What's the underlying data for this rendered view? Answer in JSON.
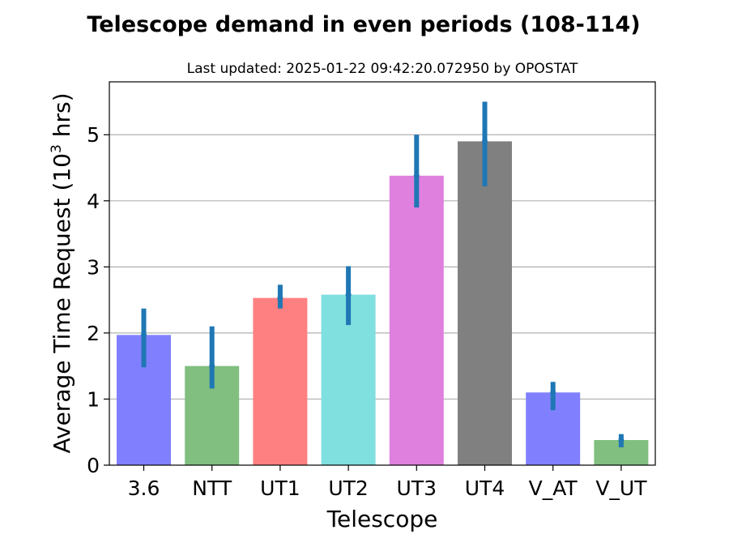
{
  "chart_data": {
    "type": "bar",
    "title": "Telescope demand in even periods (108-114)",
    "subtitle": "Last updated: 2025-01-22 09:42:20.072950 by OPOSTAT",
    "xlabel": "Telescope",
    "ylabel_main": "Average Time Request (10",
    "ylabel_sup": "3",
    "ylabel_end": " hrs)",
    "categories": [
      "3.6",
      "NTT",
      "UT1",
      "UT2",
      "UT3",
      "UT4",
      "V_AT",
      "V_UT"
    ],
    "values": [
      1.97,
      1.5,
      2.53,
      2.58,
      4.38,
      4.9,
      1.1,
      0.38
    ],
    "error_low": [
      1.48,
      1.16,
      2.37,
      2.12,
      3.9,
      4.22,
      0.83,
      0.27
    ],
    "error_high": [
      2.37,
      2.1,
      2.73,
      3.01,
      5.0,
      5.5,
      1.26,
      0.47
    ],
    "bar_colors": [
      "#8080ff",
      "#80bf80",
      "#ff8080",
      "#80dfdf",
      "#df80df",
      "#808080",
      "#8080ff",
      "#80bf80"
    ],
    "error_color": "#1f77b4",
    "ylim": [
      0,
      5.8
    ],
    "yticks": [
      "0",
      "1",
      "2",
      "3",
      "4",
      "5"
    ],
    "grid": "horizontal",
    "legend": "none"
  }
}
